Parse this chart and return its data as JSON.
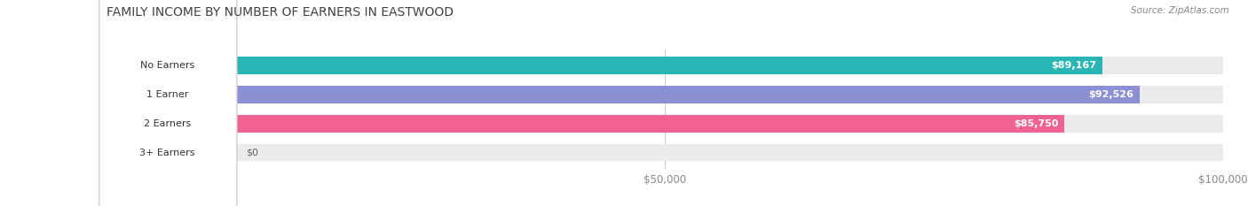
{
  "title": "FAMILY INCOME BY NUMBER OF EARNERS IN EASTWOOD",
  "source": "Source: ZipAtlas.com",
  "categories": [
    "No Earners",
    "1 Earner",
    "2 Earners",
    "3+ Earners"
  ],
  "values": [
    89167,
    92526,
    85750,
    0
  ],
  "bar_colors": [
    "#2ab5b5",
    "#8b8fd4",
    "#f06292",
    "#f5c99a"
  ],
  "label_values": [
    "$89,167",
    "$92,526",
    "$85,750",
    "$0"
  ],
  "xlim": [
    0,
    100000
  ],
  "xtick_vals": [
    0,
    50000,
    100000
  ],
  "xtick_labels": [
    "$0",
    "$50,000",
    "$100,000"
  ],
  "fig_width": 14.06,
  "fig_height": 2.33,
  "background_color": "#ffffff",
  "title_fontsize": 10,
  "bar_height": 0.58,
  "label_fontsize": 8.0,
  "bar_bg_color": "#ebebeb"
}
